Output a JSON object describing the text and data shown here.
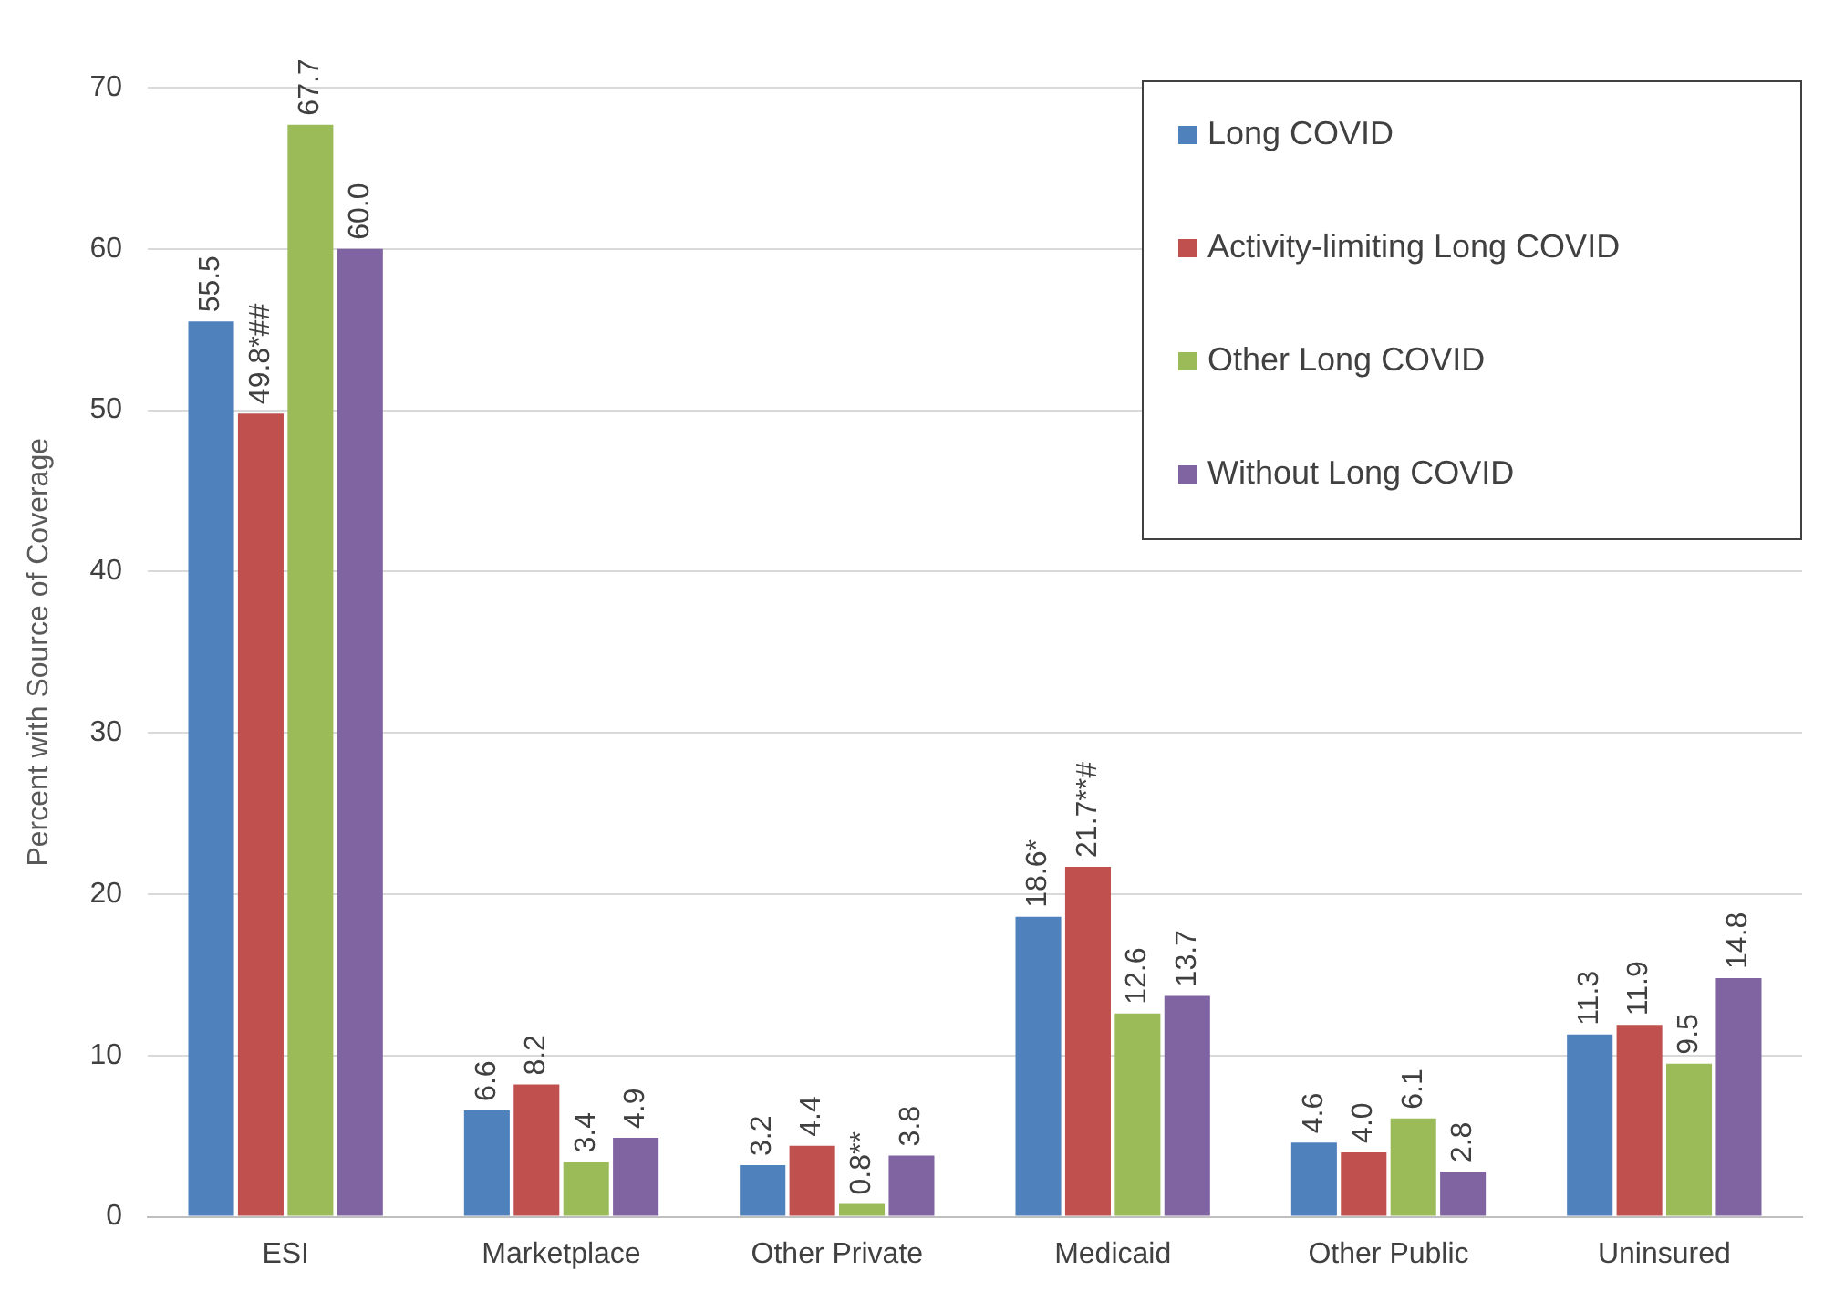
{
  "chart_data": {
    "type": "bar",
    "ylabel": "Percent with Source of Coverage",
    "categories": [
      "ESI",
      "Marketplace",
      "Other Private",
      "Medicaid",
      "Other Public",
      "Uninsured"
    ],
    "series": [
      {
        "name": "Long COVID",
        "color": "#4f81bd",
        "values": [
          55.5,
          6.6,
          3.2,
          18.6,
          4.6,
          11.3
        ],
        "value_labels": [
          "55.5",
          "6.6",
          "3.2",
          "18.6*",
          "4.6",
          "11.3"
        ]
      },
      {
        "name": "Activity-limiting Long COVID",
        "color": "#c0504d",
        "values": [
          49.8,
          8.2,
          4.4,
          21.7,
          4.0,
          11.9
        ],
        "value_labels": [
          "49.8*##",
          "8.2",
          "4.4",
          "21.7**#",
          "4.0",
          "11.9"
        ]
      },
      {
        "name": "Other Long COVID",
        "color": "#9bbb59",
        "values": [
          67.7,
          3.4,
          0.8,
          12.6,
          6.1,
          9.5
        ],
        "value_labels": [
          "67.7",
          "3.4",
          "0.8**",
          "12.6",
          "6.1",
          "9.5"
        ]
      },
      {
        "name": "Without Long COVID",
        "color": "#8064a2",
        "values": [
          60.0,
          4.9,
          3.8,
          13.7,
          2.8,
          14.8
        ],
        "value_labels": [
          "60.0",
          "4.9",
          "3.8",
          "13.7",
          "2.8",
          "14.8"
        ]
      }
    ],
    "ylim": [
      0,
      70
    ],
    "yticks": [
      0,
      10,
      20,
      30,
      40,
      50,
      60,
      70
    ],
    "grid": "y",
    "legend": "top right"
  }
}
